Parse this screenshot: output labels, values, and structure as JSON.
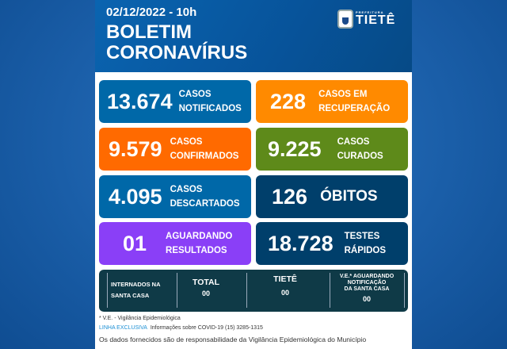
{
  "header": {
    "date": "02/12/2022 - 10h",
    "title_line1": "BOLETIM",
    "title_line2": "CORONAVÍRUS",
    "logo_small": "PREFEITURA",
    "logo_big": "TIETÊ"
  },
  "boxes": [
    {
      "value": "13.674",
      "label1": "CASOS",
      "label2": "NOTIFICADOS",
      "color": "#0068a8"
    },
    {
      "value": "228",
      "label1": "CASOS EM",
      "label2": "RECUPERAÇÃO",
      "color": "#ff8a00"
    },
    {
      "value": "9.579",
      "label1": "CASOS",
      "label2": "CONFIRMADOS",
      "color": "#ff6a00"
    },
    {
      "value": "9.225",
      "label1": "CASOS",
      "label2": "CURADOS",
      "color": "#5e8a1a"
    },
    {
      "value": "4.095",
      "label1": "CASOS",
      "label2": "DESCARTADOS",
      "color": "#0068a8"
    },
    {
      "value": "126",
      "label1": "ÓBITOS",
      "label2": "",
      "color": "#003f6b"
    },
    {
      "value": "01",
      "label1": "AGUARDANDO",
      "label2": "RESULTADOS",
      "color": "#8a3ff7"
    },
    {
      "value": "18.728",
      "label1": "TESTES",
      "label2": "RÁPIDOS",
      "color": "#003f6b"
    }
  ],
  "hospital": {
    "label1": "INTERNADOS NA",
    "label2": "SANTA CASA",
    "total_label": "TOTAL",
    "total": "00",
    "tiete_label": "TIETÊ",
    "tiete": "00",
    "ve_label1": "V.E.* AGUARDANDO",
    "ve_label2": "NOTIFICAÇÃO",
    "ve_label3": "DA SANTA CASA",
    "ve": "00"
  },
  "footer": {
    "note": "* V.E. - Vigilância Epidemiológica",
    "hotline_label": "LINHA EXCLUSIVA",
    "hotline_text": "Informações sobre COVID-19  (15) 3285-1315",
    "disclaimer": "Os dados fornecidos são de responsabilidade da Vigilância Epidemiológica do Município"
  }
}
